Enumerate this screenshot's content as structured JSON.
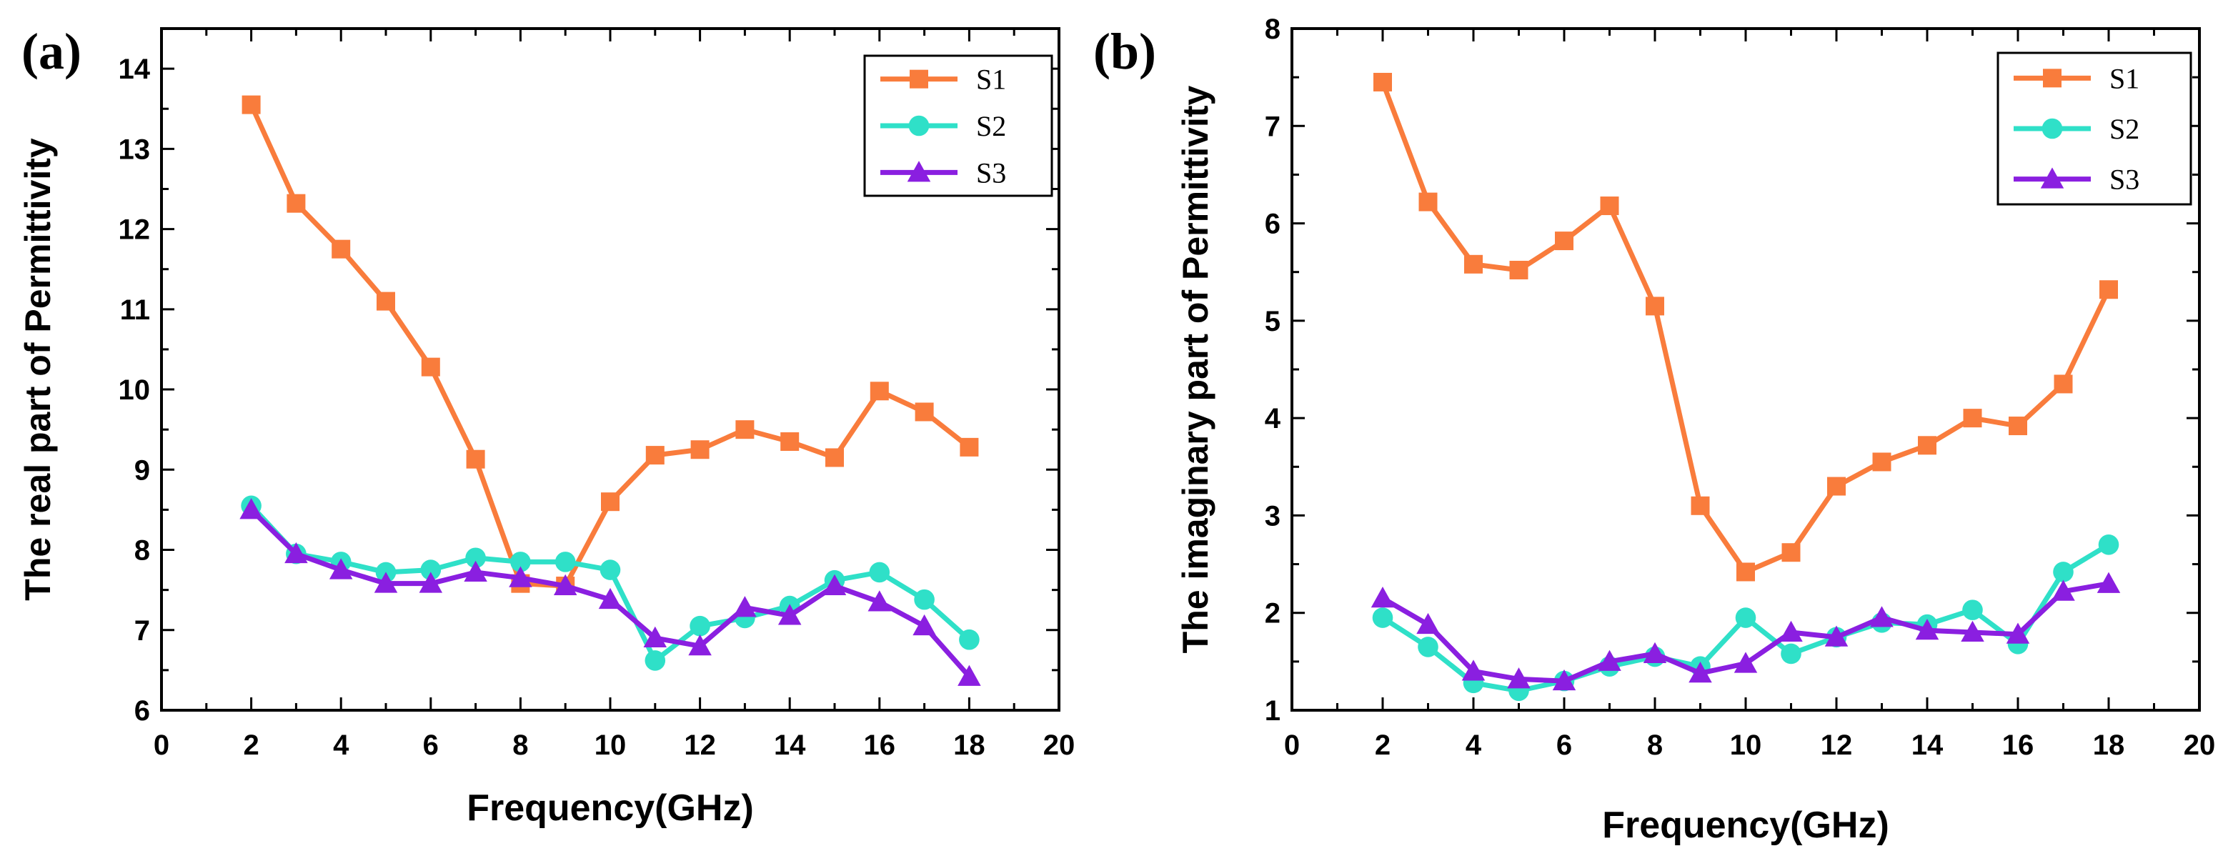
{
  "chart_data": [
    {
      "type": "line",
      "panel_label": "(a)",
      "xlabel": "Frequency(GHz)",
      "ylabel": "The real part of Permittivity",
      "xlim": [
        0,
        20
      ],
      "ylim": [
        6,
        14.5
      ],
      "xticks": [
        0,
        2,
        4,
        6,
        8,
        10,
        12,
        14,
        16,
        18,
        20
      ],
      "yticks": [
        6,
        7,
        8,
        9,
        10,
        11,
        12,
        13,
        14
      ],
      "grid": false,
      "legend_position": "top-right",
      "x": [
        2,
        3,
        4,
        5,
        6,
        7,
        8,
        9,
        10,
        11,
        12,
        13,
        14,
        15,
        16,
        17,
        18
      ],
      "series": [
        {
          "name": "S1",
          "color": "#f97c3c",
          "marker": "square",
          "values": [
            13.55,
            12.32,
            11.75,
            11.1,
            10.28,
            9.13,
            7.58,
            7.55,
            8.6,
            9.18,
            9.25,
            9.5,
            9.35,
            9.15,
            9.98,
            9.72,
            9.28
          ]
        },
        {
          "name": "S2",
          "color": "#2fe0c8",
          "marker": "circle",
          "values": [
            8.55,
            7.95,
            7.85,
            7.72,
            7.75,
            7.9,
            7.85,
            7.85,
            7.75,
            6.62,
            7.05,
            7.15,
            7.3,
            7.62,
            7.72,
            7.38,
            6.88
          ]
        },
        {
          "name": "S3",
          "color": "#8a1fe0",
          "marker": "triangle",
          "values": [
            8.5,
            7.95,
            7.75,
            7.58,
            7.58,
            7.72,
            7.65,
            7.55,
            7.38,
            6.9,
            6.8,
            7.28,
            7.18,
            7.55,
            7.35,
            7.05,
            6.42
          ]
        }
      ]
    },
    {
      "type": "line",
      "panel_label": "(b)",
      "xlabel": "Frequency(GHz)",
      "ylabel": "The imaginary part of Permittivity",
      "xlim": [
        0,
        20
      ],
      "ylim": [
        1,
        8
      ],
      "xticks": [
        0,
        2,
        4,
        6,
        8,
        10,
        12,
        14,
        16,
        18,
        20
      ],
      "yticks": [
        1,
        2,
        3,
        4,
        5,
        6,
        7,
        8
      ],
      "grid": false,
      "legend_position": "top-right",
      "x": [
        2,
        3,
        4,
        5,
        6,
        7,
        8,
        9,
        10,
        11,
        12,
        13,
        14,
        15,
        16,
        17,
        18
      ],
      "series": [
        {
          "name": "S1",
          "color": "#f97c3c",
          "marker": "square",
          "values": [
            7.45,
            6.22,
            5.58,
            5.52,
            5.82,
            6.18,
            5.15,
            3.1,
            2.42,
            2.62,
            3.3,
            3.55,
            3.72,
            4.0,
            3.92,
            4.35,
            5.32
          ]
        },
        {
          "name": "S2",
          "color": "#2fe0c8",
          "marker": "circle",
          "values": [
            1.95,
            1.65,
            1.28,
            1.2,
            1.3,
            1.45,
            1.55,
            1.45,
            1.95,
            1.58,
            1.75,
            1.9,
            1.88,
            2.03,
            1.68,
            2.42,
            2.7
          ]
        },
        {
          "name": "S3",
          "color": "#8a1fe0",
          "marker": "triangle",
          "values": [
            2.15,
            1.88,
            1.4,
            1.32,
            1.3,
            1.5,
            1.58,
            1.38,
            1.48,
            1.8,
            1.75,
            1.95,
            1.82,
            1.8,
            1.78,
            2.22,
            2.3
          ]
        }
      ]
    }
  ]
}
